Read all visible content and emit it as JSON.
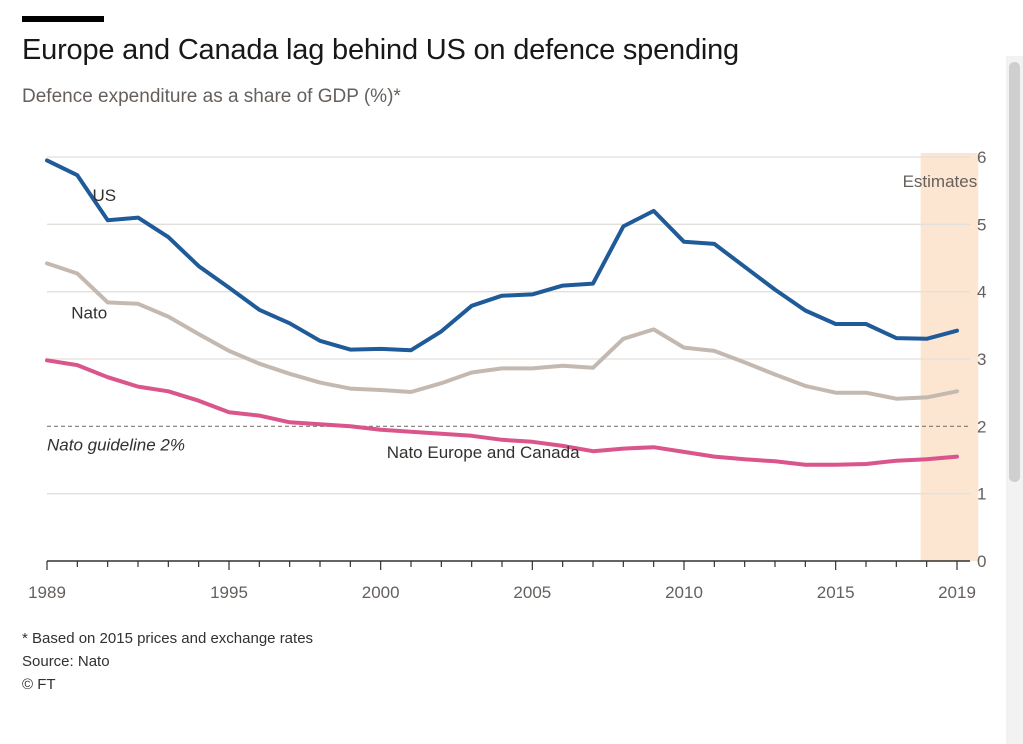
{
  "header": {
    "title": "Europe and Canada lag behind US on defence spending",
    "subtitle": "Defence expenditure as a share of GDP (%)*"
  },
  "footer": {
    "note": "* Based on 2015 prices and exchange rates",
    "source": "Source: Nato",
    "copyright": "© FT"
  },
  "colors": {
    "us": "#1f5a99",
    "nato": "#c4b9b1",
    "europe_canada": "#d9558b",
    "estimates_band": "#fce6d2",
    "gridline": "#e3dfdb",
    "axis": "#33302e",
    "guideline": "#807973"
  },
  "chart_data": {
    "type": "line",
    "x": [
      1989,
      1990,
      1991,
      1992,
      1993,
      1994,
      1995,
      1996,
      1997,
      1998,
      1999,
      2000,
      2001,
      2002,
      2003,
      2004,
      2005,
      2006,
      2007,
      2008,
      2009,
      2010,
      2011,
      2012,
      2013,
      2014,
      2015,
      2016,
      2017,
      2018,
      2019
    ],
    "series": [
      {
        "name": "US",
        "color_key": "us",
        "values": [
          5.95,
          5.73,
          5.06,
          5.1,
          4.81,
          4.38,
          4.06,
          3.73,
          3.53,
          3.27,
          3.14,
          3.15,
          3.13,
          3.41,
          3.79,
          3.94,
          3.96,
          4.09,
          4.12,
          4.97,
          5.2,
          4.74,
          4.71,
          4.37,
          4.03,
          3.72,
          3.52,
          3.52,
          3.31,
          3.3,
          3.42
        ]
      },
      {
        "name": "Nato",
        "color_key": "nato",
        "values": [
          4.42,
          4.27,
          3.84,
          3.82,
          3.63,
          3.37,
          3.12,
          2.93,
          2.78,
          2.65,
          2.56,
          2.54,
          2.51,
          2.64,
          2.8,
          2.86,
          2.86,
          2.9,
          2.87,
          3.3,
          3.44,
          3.17,
          3.12,
          2.95,
          2.77,
          2.6,
          2.5,
          2.5,
          2.41,
          2.43,
          2.52
        ]
      },
      {
        "name": "Nato Europe and Canada",
        "color_key": "europe_canada",
        "values": [
          2.98,
          2.91,
          2.73,
          2.59,
          2.52,
          2.38,
          2.21,
          2.16,
          2.06,
          2.03,
          2.0,
          1.95,
          1.92,
          1.89,
          1.86,
          1.8,
          1.77,
          1.71,
          1.63,
          1.67,
          1.69,
          1.62,
          1.55,
          1.51,
          1.48,
          1.43,
          1.43,
          1.44,
          1.49,
          1.51,
          1.55
        ]
      }
    ],
    "xlim": [
      1989,
      2019
    ],
    "ylim": [
      0,
      6
    ],
    "y_ticks": [
      0,
      1,
      2,
      3,
      4,
      5,
      6
    ],
    "x_tick_labels": [
      1989,
      1995,
      2000,
      2005,
      2010,
      2015,
      2019
    ],
    "x_minor_ticks": "yearly",
    "grid": true,
    "y_axis_side": "right",
    "estimates": {
      "label": "Estimates",
      "from": 2017.8,
      "to": 2019.7
    },
    "guideline": {
      "value": 2,
      "label": "Nato guideline 2%"
    },
    "series_labels": [
      {
        "text": "US",
        "x": 1990.5,
        "y": 5.35
      },
      {
        "text": "Nato",
        "x": 1989.8,
        "y": 3.6
      },
      {
        "text": "Nato Europe and Canada",
        "x": 2000.2,
        "y": 1.53
      }
    ]
  }
}
